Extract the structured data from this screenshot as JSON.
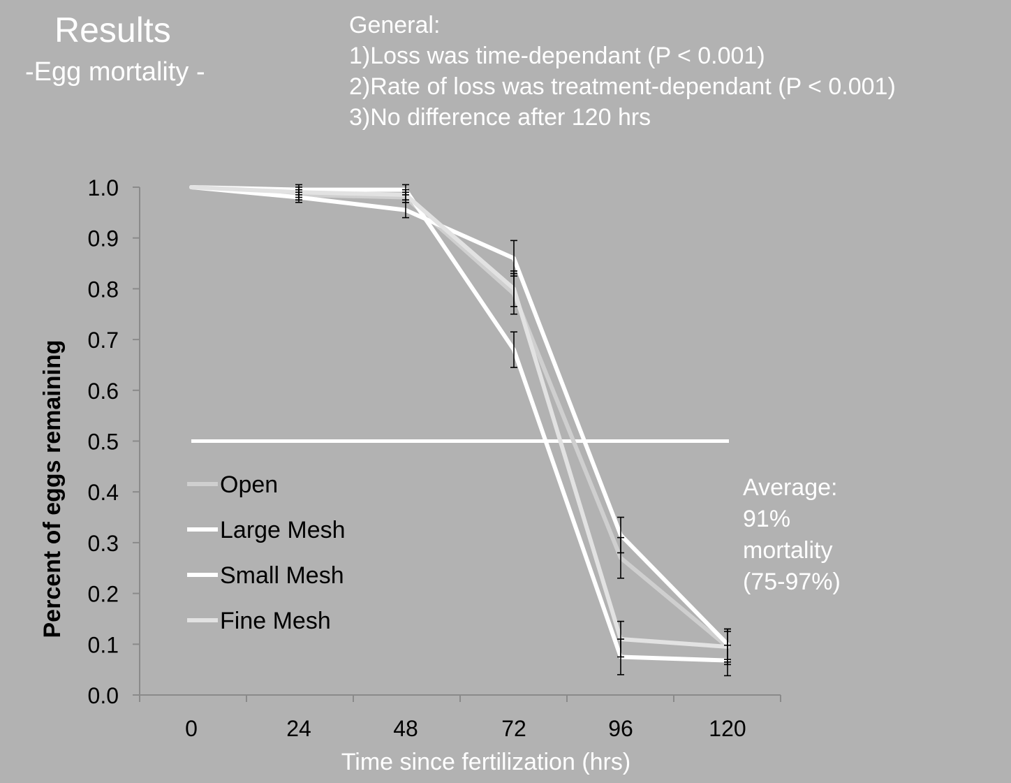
{
  "header": {
    "title": "Results",
    "subtitle": "-Egg mortality -"
  },
  "general": {
    "heading": "General:",
    "items": [
      "1)Loss was time-dependant (P < 0.001)",
      "2)Rate of loss was treatment-dependant (P < 0.001)",
      "3)No difference after 120 hrs"
    ]
  },
  "note": {
    "lines": [
      "Average:",
      "91%",
      "mortality",
      "(75-97%)"
    ]
  },
  "colors": {
    "background": "#b2b2b2",
    "axis": "#8a8a8a",
    "text": "#000000",
    "white": "#ffffff"
  },
  "chart_data": {
    "type": "line",
    "xlabel": "Time since fertilization (hrs)",
    "ylabel": "Percent of eggs remaining",
    "x": [
      0,
      24,
      48,
      72,
      96,
      120
    ],
    "x_tick_labels": [
      "0",
      "24",
      "48",
      "72",
      "96",
      "120"
    ],
    "ylim": [
      0.0,
      1.0
    ],
    "y_ticks": [
      "0.0",
      "0.1",
      "0.2",
      "0.3",
      "0.4",
      "0.5",
      "0.6",
      "0.7",
      "0.8",
      "0.9",
      "1.0"
    ],
    "grid": false,
    "legend_position": "left, below the 0.5 line",
    "reference_line": {
      "y": 0.5
    },
    "series": [
      {
        "name": "Open",
        "color": "#cfcfcf",
        "values": [
          1.0,
          0.985,
          0.98,
          0.79,
          0.27,
          0.095
        ],
        "error": [
          0,
          0.01,
          0.01,
          0.04,
          0.04,
          0.03
        ]
      },
      {
        "name": "Large Mesh",
        "color": "#ffffff",
        "values": [
          1.0,
          0.98,
          0.955,
          0.86,
          0.315,
          0.1
        ],
        "error": [
          0,
          0.01,
          0.015,
          0.035,
          0.035,
          0.03
        ]
      },
      {
        "name": "Small Mesh",
        "color": "#ffffff",
        "values": [
          1.0,
          0.995,
          0.995,
          0.68,
          0.075,
          0.068
        ],
        "error": [
          0,
          0.01,
          0.01,
          0.035,
          0.035,
          0.03
        ]
      },
      {
        "name": "Fine Mesh",
        "color": "#e2e2e2",
        "values": [
          1.0,
          0.99,
          0.985,
          0.8,
          0.11,
          0.095
        ],
        "error": [
          0,
          0.01,
          0.01,
          0.035,
          0.035,
          0.035
        ]
      }
    ]
  }
}
